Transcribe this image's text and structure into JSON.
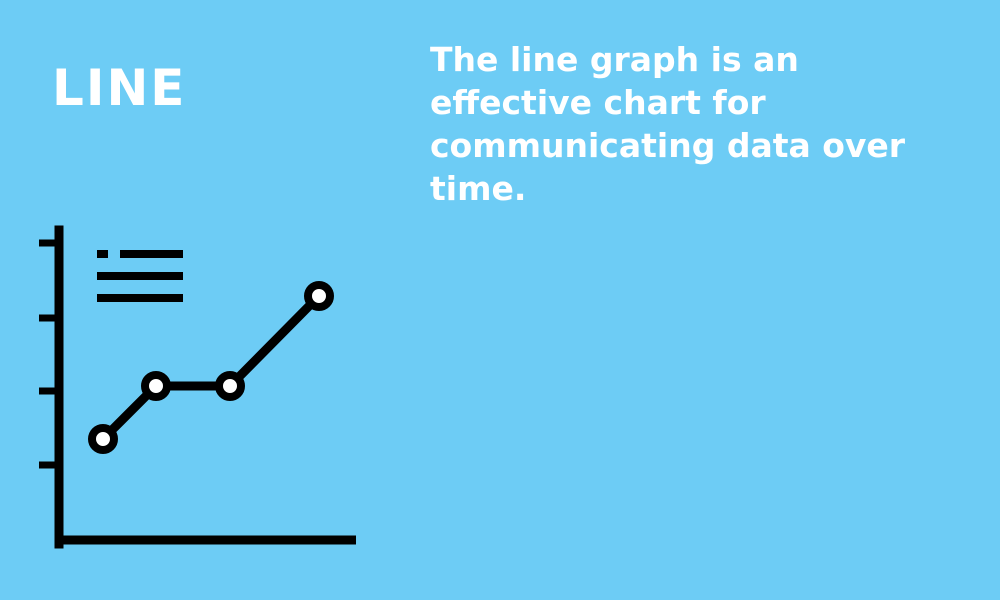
{
  "heading": {
    "title": "LINE"
  },
  "body": {
    "description": "The line graph is an effective chart for communicating data over time."
  },
  "illustration": {
    "icon": "line-chart-icon",
    "colors": {
      "background": "#6dccf5",
      "text": "#ffffff",
      "icon_stroke": "#000000"
    }
  }
}
